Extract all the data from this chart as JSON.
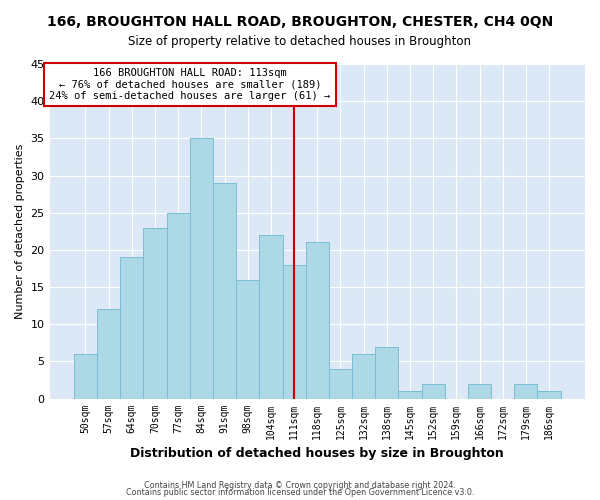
{
  "title": "166, BROUGHTON HALL ROAD, BROUGHTON, CHESTER, CH4 0QN",
  "subtitle": "Size of property relative to detached houses in Broughton",
  "xlabel": "Distribution of detached houses by size in Broughton",
  "ylabel": "Number of detached properties",
  "footer1": "Contains HM Land Registry data © Crown copyright and database right 2024.",
  "footer2": "Contains public sector information licensed under the Open Government Licence v3.0.",
  "categories": [
    "50sqm",
    "57sqm",
    "64sqm",
    "70sqm",
    "77sqm",
    "84sqm",
    "91sqm",
    "98sqm",
    "104sqm",
    "111sqm",
    "118sqm",
    "125sqm",
    "132sqm",
    "138sqm",
    "145sqm",
    "152sqm",
    "159sqm",
    "166sqm",
    "172sqm",
    "179sqm",
    "186sqm"
  ],
  "values": [
    6,
    12,
    19,
    23,
    25,
    35,
    29,
    16,
    22,
    18,
    21,
    4,
    6,
    7,
    1,
    2,
    0,
    2,
    0,
    2,
    1
  ],
  "bar_color": "#add8e6",
  "bar_edge_color": "#7bbdd4",
  "highlight_index": 9,
  "highlight_line_color": "#cc0000",
  "annotation_title": "166 BROUGHTON HALL ROAD: 113sqm",
  "annotation_line1": "← 76% of detached houses are smaller (189)",
  "annotation_line2": "24% of semi-detached houses are larger (61) →",
  "annotation_box_color": "#ffffff",
  "annotation_box_edge": "#cc0000",
  "ylim": [
    0,
    45
  ],
  "axes_bg_color": "#dce8f5",
  "fig_bg_color": "#ffffff",
  "grid_color": "#ffffff"
}
